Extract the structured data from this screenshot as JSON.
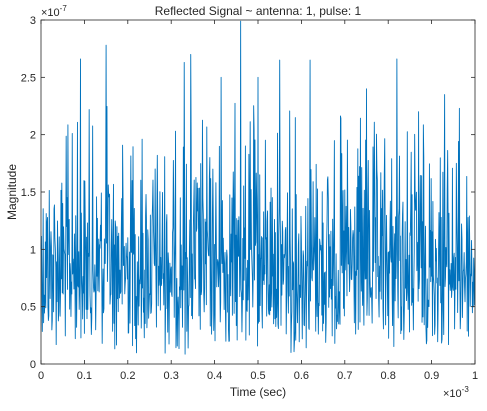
{
  "chart_data": {
    "type": "line",
    "title": "Reflected Signal ~ antenna: 1, pulse: 1",
    "xlabel": "Time (sec)",
    "ylabel": "Magnitude",
    "x_exponent_label": "×10",
    "x_exponent_power": "-3",
    "y_exponent_label": "×10",
    "y_exponent_power": "-7",
    "xlim": [
      0,
      0.001
    ],
    "ylim": [
      0,
      3e-07
    ],
    "x_tick_values": [
      0,
      0.0001,
      0.0002,
      0.0003,
      0.0004,
      0.0005,
      0.0006,
      0.0007,
      0.0008,
      0.0009,
      0.001
    ],
    "x_tick_labels": [
      "0",
      "0.1",
      "0.2",
      "0.3",
      "0.4",
      "0.5",
      "0.6",
      "0.7",
      "0.8",
      "0.9",
      "1"
    ],
    "y_tick_values": [
      0,
      5e-08,
      1e-07,
      1.5e-07,
      2e-07,
      2.5e-07,
      3e-07
    ],
    "y_tick_labels": [
      "0",
      "0.5",
      "1",
      "1.5",
      "2",
      "2.5",
      "3"
    ],
    "grid": false,
    "legend": "none",
    "series": [
      {
        "color": "#0072BD",
        "x": [
          0,
          5e-05,
          9.1e-05,
          0.00015,
          0.00021,
          0.00033,
          0.000345,
          0.000415,
          0.00046,
          0.0005,
          0.00055,
          0.00062,
          0.00075,
          0.00082,
          0.00087,
          0.00093,
          0.001
        ],
        "y": [
          1e-07,
          1.4e-07,
          2.66e-07,
          2.78e-07,
          1.6e-07,
          2.63e-07,
          2.7e-07,
          2.5e-07,
          2.99e-07,
          2.5e-07,
          2.65e-07,
          2.65e-07,
          2.4e-07,
          2.66e-07,
          2.2e-07,
          2.35e-07,
          1e-07
        ]
      }
    ]
  }
}
